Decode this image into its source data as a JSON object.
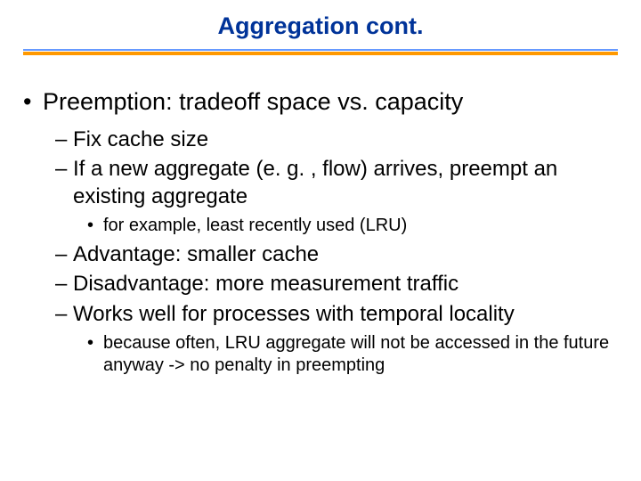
{
  "title": {
    "text": "Aggregation cont.",
    "color": "#003399",
    "fontsize_pt": 27,
    "fontweight": "bold"
  },
  "rules": {
    "top_color": "#6699ff",
    "bottom_color": "#ff9900"
  },
  "content": {
    "bullets": [
      {
        "level": 1,
        "text": "Preemption: tradeoff space vs. capacity"
      },
      {
        "level": 2,
        "text": "Fix cache size"
      },
      {
        "level": 2,
        "text": "If a new aggregate (e. g. , flow) arrives, preempt an existing aggregate"
      },
      {
        "level": 3,
        "text": "for example, least recently used (LRU)"
      },
      {
        "level": 2,
        "text": "Advantage: smaller cache"
      },
      {
        "level": 2,
        "text": "Disadvantage: more measurement traffic"
      },
      {
        "level": 2,
        "text": "Works well for processes with temporal locality"
      },
      {
        "level": 3,
        "text": "because often, LRU aggregate will not be accessed in the future anyway -> no penalty in preempting"
      }
    ],
    "level1_fontsize_pt": 27,
    "level2_fontsize_pt": 24,
    "level3_fontsize_pt": 20,
    "text_color": "#000000"
  },
  "background_color": "#ffffff"
}
